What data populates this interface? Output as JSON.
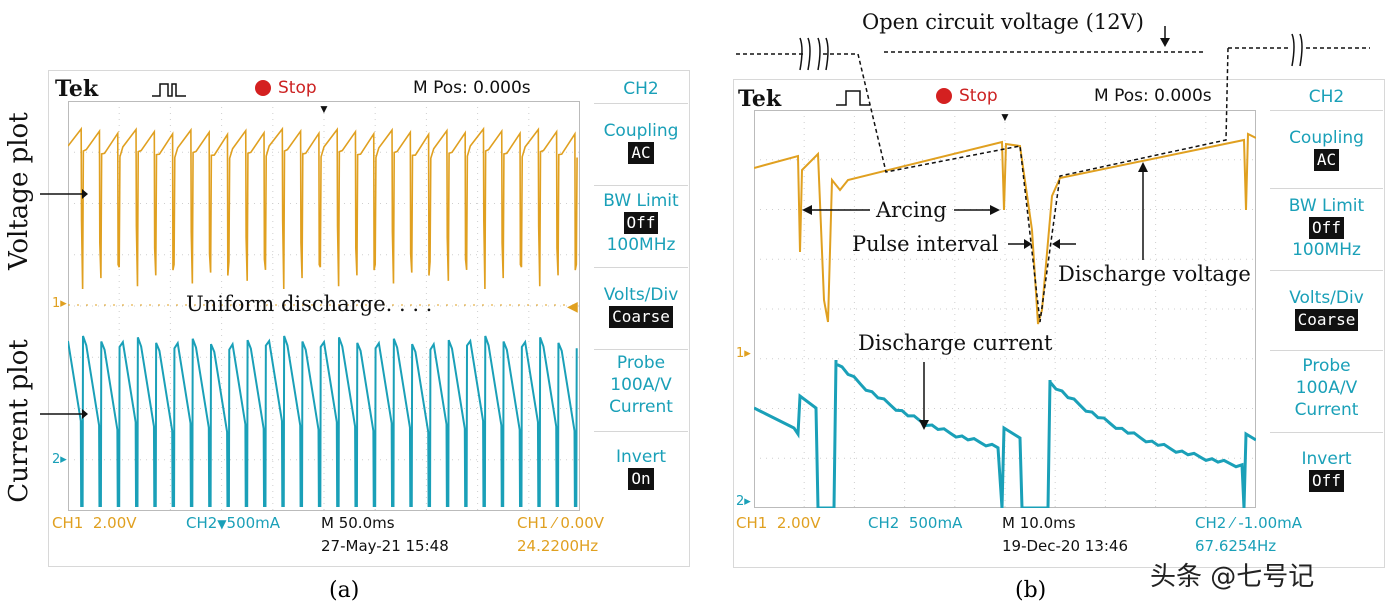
{
  "chart_data": [
    {
      "type": "line",
      "panel_label": "(a)",
      "header": {
        "brand": "Tek",
        "status": "Stop",
        "mpos": "M Pos: 0.000s"
      },
      "sidebar": [
        {
          "label": "CH2",
          "value": ""
        },
        {
          "label": "Coupling",
          "value": "AC"
        },
        {
          "label": "BW Limit",
          "value": "Off",
          "extra": "100MHz"
        },
        {
          "label": "Volts/Div",
          "value": "Coarse"
        },
        {
          "label": "Probe",
          "extra_lines": [
            "100A/V",
            "Current"
          ]
        },
        {
          "label": "Invert",
          "value": "On"
        }
      ],
      "footer": {
        "ch1": "CH1",
        "ch1_scale": "2.00V",
        "ch2": "CH2",
        "ch2_scale": "500mA",
        "timebase": "M 50.0ms",
        "date": "27-May-21 15:48",
        "trig": "CH1",
        "trig_level": "0.00V",
        "freq": "24.2200Hz"
      },
      "markers": {
        "ch1": "1",
        "ch2": "2"
      },
      "side_labels": {
        "top": "Voltage plot",
        "bottom": "Current plot"
      },
      "annotation": "Uniform discharge. . . .",
      "series": [
        {
          "color": "#e0a020"
        },
        {
          "color": "#1aa0b8"
        }
      ]
    },
    {
      "type": "line",
      "panel_label": "(b)",
      "header": {
        "brand": "Tek",
        "status": "Stop",
        "mpos": "M Pos: 0.000s"
      },
      "sidebar": [
        {
          "label": "CH2",
          "value": ""
        },
        {
          "label": "Coupling",
          "value": "AC"
        },
        {
          "label": "BW Limit",
          "value": "Off",
          "extra": "100MHz"
        },
        {
          "label": "Volts/Div",
          "value": "Coarse"
        },
        {
          "label": "Probe",
          "extra_lines": [
            "100A/V",
            "Current"
          ]
        },
        {
          "label": "Invert",
          "value": "Off"
        }
      ],
      "footer": {
        "ch1": "CH1",
        "ch1_scale": "2.00V",
        "ch2": "CH2",
        "ch2_scale": "500mA",
        "timebase": "M 10.0ms",
        "date": "19-Dec-20 13:46",
        "trig": "CH2",
        "trig_level": "-1.00mA",
        "freq": "67.6254Hz"
      },
      "markers": {
        "ch1": "1",
        "ch2": "2"
      },
      "annotations": {
        "open_circuit": "Open circuit voltage (12V)",
        "arcing": "Arcing",
        "pulse_interval": "Pulse interval",
        "discharge_voltage": "Discharge voltage",
        "discharge_current": "Discharge current"
      },
      "series": [
        {
          "color": "#e0a020"
        },
        {
          "color": "#1aa0b8"
        }
      ]
    }
  ],
  "watermark": "头条 @七号记"
}
